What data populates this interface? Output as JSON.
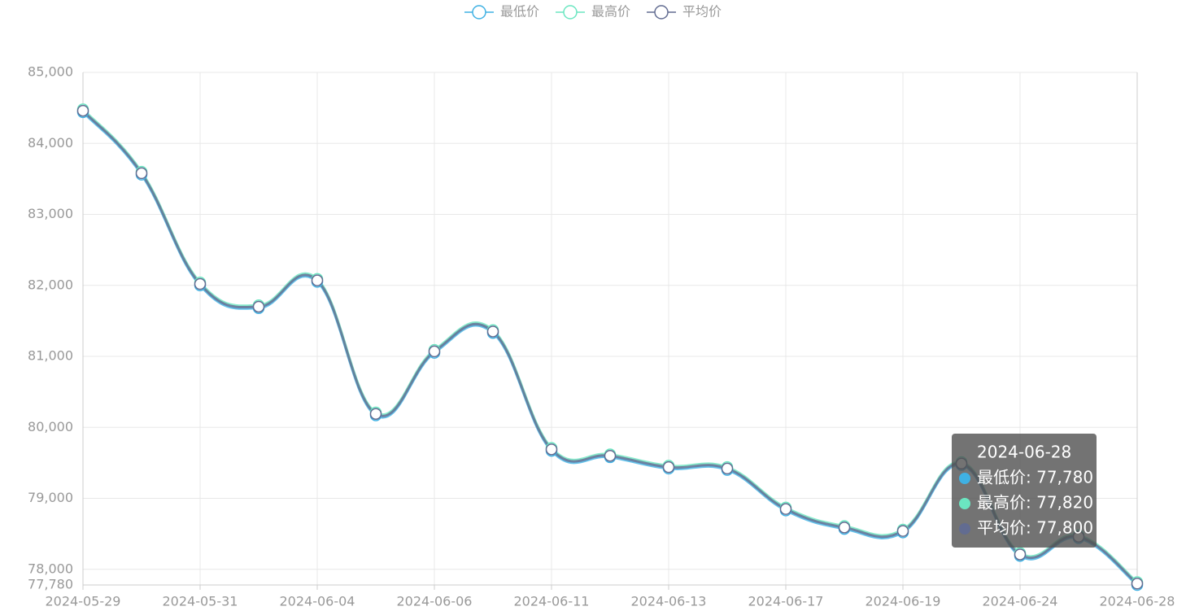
{
  "chart_data": {
    "type": "line",
    "categories": [
      "2024-05-29",
      null,
      "2024-05-31",
      null,
      "2024-06-04",
      null,
      "2024-06-06",
      null,
      "2024-06-11",
      null,
      "2024-06-13",
      null,
      "2024-06-17",
      null,
      "2024-06-19",
      null,
      "2024-06-24",
      null,
      "2024-06-28"
    ],
    "series": [
      {
        "name": "最低价",
        "color": "#3fb1e3",
        "values": [
          84440,
          83560,
          82000,
          81680,
          82050,
          80170,
          81050,
          81330,
          79670,
          79580,
          79420,
          79400,
          78830,
          78570,
          78520,
          79470,
          78190,
          78440,
          77780
        ]
      },
      {
        "name": "最高价",
        "color": "#6be6c1",
        "values": [
          84480,
          83600,
          82040,
          81720,
          82090,
          80210,
          81090,
          81370,
          79710,
          79620,
          79460,
          79440,
          78870,
          78610,
          78560,
          79510,
          78230,
          78480,
          77820
        ]
      },
      {
        "name": "平均价",
        "color": "#626c91",
        "values": [
          84460,
          83580,
          82020,
          81700,
          82070,
          80190,
          81070,
          81350,
          79690,
          79600,
          79440,
          79420,
          78850,
          78590,
          78540,
          79490,
          78210,
          78460,
          77800
        ]
      }
    ],
    "ylim": [
      77780,
      85000
    ],
    "yticks": [
      {
        "value": 77780,
        "label": "77,780"
      },
      {
        "value": 78000,
        "label": "78,000"
      },
      {
        "value": 79000,
        "label": "79,000"
      },
      {
        "value": 80000,
        "label": "80,000"
      },
      {
        "value": 81000,
        "label": "81,000"
      },
      {
        "value": 82000,
        "label": "82,000"
      },
      {
        "value": 83000,
        "label": "83,000"
      },
      {
        "value": 84000,
        "label": "84,000"
      },
      {
        "value": 85000,
        "label": "85,000"
      }
    ],
    "grid": true,
    "legend": "top",
    "tooltip": {
      "title": "2024-06-28",
      "items": [
        "最低价: 77,780",
        "最高价: 77,820",
        "平均价: 77,800"
      ]
    }
  }
}
